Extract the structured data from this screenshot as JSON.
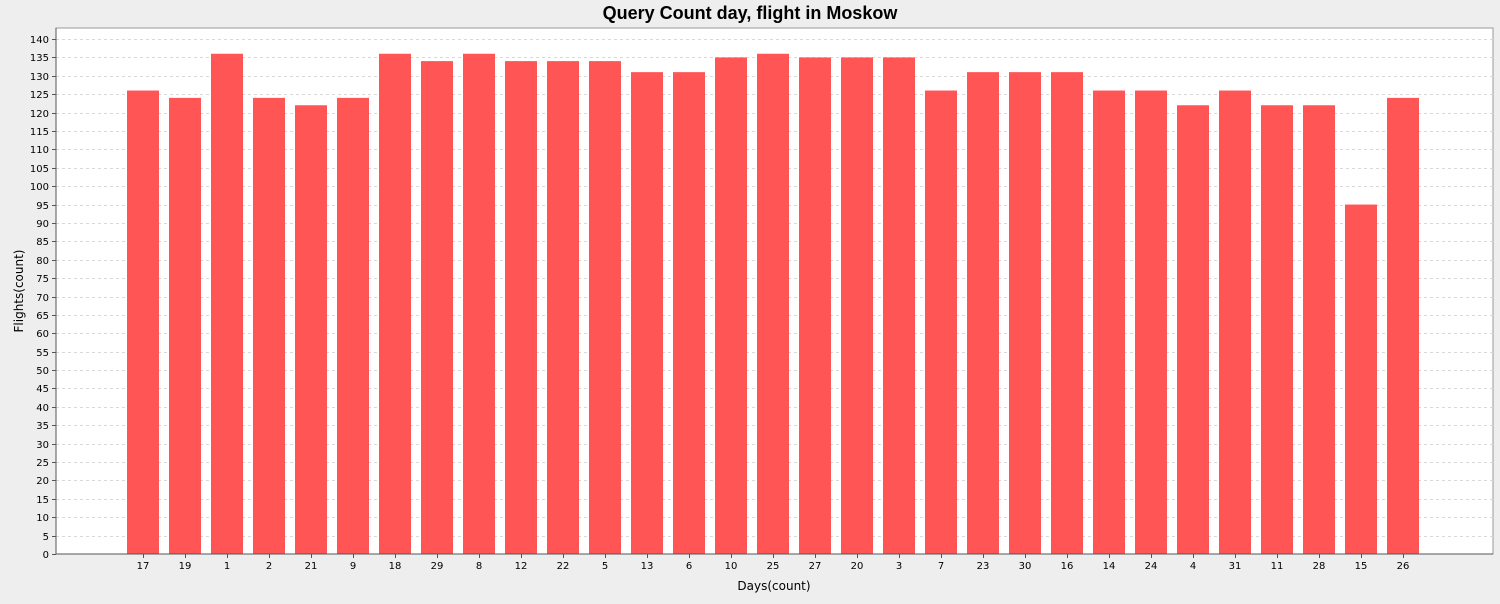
{
  "chart_data": {
    "type": "bar",
    "title": "Query Count day, flight in Moskow",
    "xlabel": "Days(count)",
    "ylabel": "Flights(count)",
    "ylim": [
      0,
      143
    ],
    "ytick_step": 5,
    "grid": true,
    "bar_color": "#ff5555",
    "plot_background": "#ffffff",
    "categories": [
      "17",
      "19",
      "1",
      "2",
      "21",
      "9",
      "18",
      "29",
      "8",
      "12",
      "22",
      "5",
      "13",
      "6",
      "10",
      "25",
      "27",
      "20",
      "3",
      "7",
      "23",
      "30",
      "16",
      "14",
      "24",
      "4",
      "31",
      "11",
      "28",
      "15",
      "26"
    ],
    "values": [
      126,
      124,
      136,
      124,
      122,
      124,
      136,
      134,
      136,
      134,
      134,
      134,
      131,
      131,
      135,
      136,
      135,
      135,
      135,
      126,
      131,
      131,
      131,
      126,
      126,
      122,
      126,
      122,
      122,
      95,
      124
    ]
  }
}
